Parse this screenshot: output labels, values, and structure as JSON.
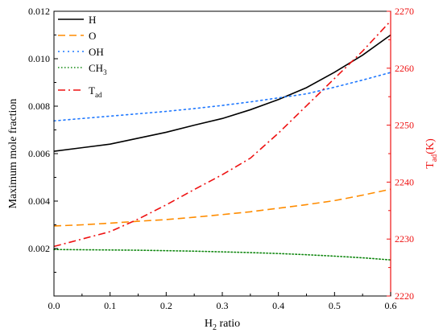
{
  "chart_data": {
    "type": "line",
    "xlabel": {
      "main": "H",
      "sub": "2",
      "rest": " ratio"
    },
    "ylabel": "Maximum mole fraction",
    "y2label": {
      "main": "T",
      "sub": "ad",
      "rest": "(K)"
    },
    "xlim": [
      0.0,
      0.6
    ],
    "ylim": [
      0.0,
      0.012
    ],
    "y2lim": [
      2220,
      2270
    ],
    "xticks": [
      "0.0",
      "0.1",
      "0.2",
      "0.3",
      "0.4",
      "0.5",
      "0.6"
    ],
    "yticks": [
      "0.002",
      "0.004",
      "0.006",
      "0.008",
      "0.010",
      "0.012"
    ],
    "y2ticks": [
      "2220",
      "2230",
      "2240",
      "2250",
      "2260",
      "2270"
    ],
    "grid": false,
    "legend_position": "top-left",
    "x": [
      0.0,
      0.05,
      0.1,
      0.15,
      0.2,
      0.25,
      0.3,
      0.35,
      0.4,
      0.45,
      0.5,
      0.55,
      0.6
    ],
    "series": [
      {
        "name": "H",
        "axis": "left",
        "color": "#000000",
        "dash": "solid",
        "values": [
          0.0061,
          0.00625,
          0.0064,
          0.00665,
          0.0069,
          0.0072,
          0.00748,
          0.00785,
          0.00828,
          0.00878,
          0.00943,
          0.01015,
          0.011
        ]
      },
      {
        "name": "O",
        "axis": "left",
        "color": "#ff8c00",
        "dash": "dashed",
        "values": [
          0.00295,
          0.003,
          0.00307,
          0.00315,
          0.00322,
          0.00332,
          0.00343,
          0.00355,
          0.0037,
          0.00385,
          0.00402,
          0.00425,
          0.0045
        ]
      },
      {
        "name": "OH",
        "axis": "left",
        "color": "#1f78ff",
        "dash": "dotted",
        "values": [
          0.00738,
          0.00748,
          0.00758,
          0.00768,
          0.00778,
          0.0079,
          0.00803,
          0.00818,
          0.00835,
          0.00852,
          0.0088,
          0.0091,
          0.00942
        ]
      },
      {
        "name": "CH",
        "name_sub": "3",
        "axis": "left",
        "color": "#118811",
        "dash": "dotted-fine",
        "values": [
          0.00196,
          0.00195,
          0.00194,
          0.00193,
          0.00191,
          0.00189,
          0.00186,
          0.00183,
          0.00179,
          0.00174,
          0.00168,
          0.00161,
          0.00152
        ]
      },
      {
        "name": "T",
        "name_sub": "ad",
        "axis": "right",
        "color": "#ee1111",
        "dash": "dashdot",
        "values": [
          2228.7,
          2230,
          2231.3,
          2233.5,
          2236,
          2238.7,
          2241.3,
          2244.2,
          2248.6,
          2253.4,
          2258.2,
          2263,
          2268.3
        ]
      }
    ]
  }
}
